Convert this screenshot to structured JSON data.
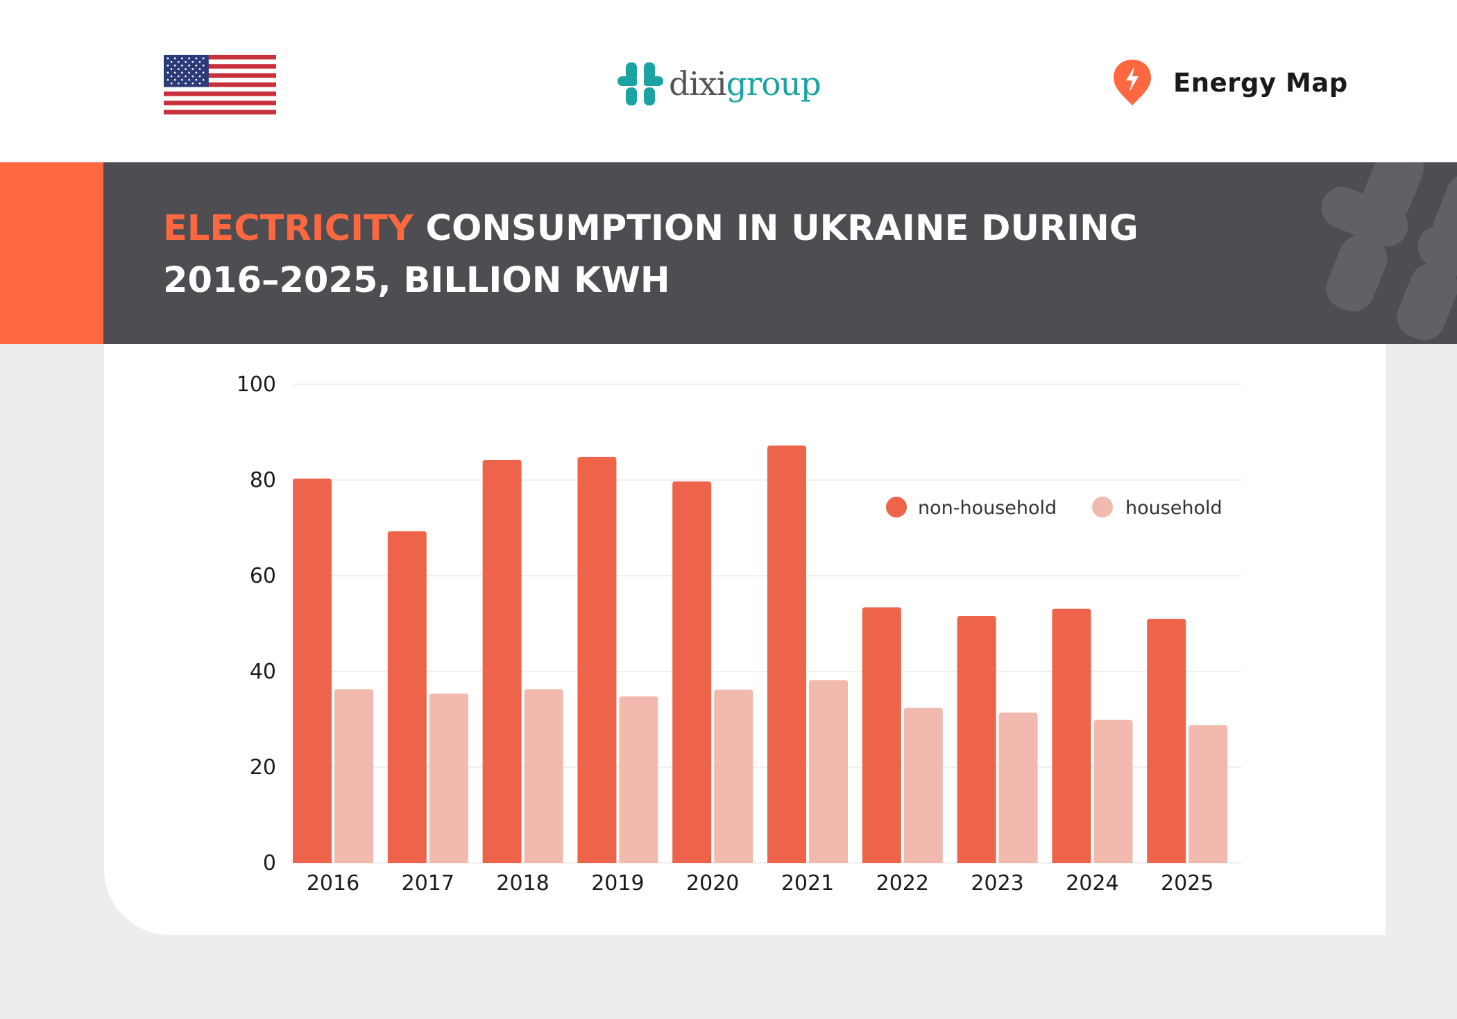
{
  "header": {
    "brand": {
      "part_a": "dixi",
      "part_b": "group"
    },
    "energy_map_label": "Energy Map"
  },
  "title": {
    "highlight": "ELECTRICITY",
    "rest": "CONSUMPTION IN UKRAINE DURING 2016–2025, BILLION KWH"
  },
  "colors": {
    "accent": "#fe6840",
    "non_household": "#ee644a",
    "household": "#f2b9ae",
    "title_band": "#4e4d52",
    "brand_teal": "#1ba3a3"
  },
  "icons": [
    "us-flag-icon",
    "dixigroup-logo-icon",
    "energy-map-pin-icon",
    "logo-watermark-icon"
  ],
  "chart_data": {
    "type": "bar",
    "title": "ELECTRICITY CONSUMPTION IN UKRAINE DURING 2016–2025, BILLION KWH",
    "xlabel": "",
    "ylabel": "",
    "categories": [
      "2016",
      "2017",
      "2018",
      "2019",
      "2020",
      "2021",
      "2022",
      "2023",
      "2024",
      "2025"
    ],
    "series": [
      {
        "name": "non-household",
        "color": "#ee644a",
        "values": [
          80.3,
          69.3,
          84.2,
          84.8,
          79.7,
          87.2,
          53.4,
          51.6,
          53.1,
          51.0
        ]
      },
      {
        "name": "household",
        "color": "#f2b9ae",
        "values": [
          36.3,
          35.4,
          36.3,
          34.8,
          36.2,
          38.2,
          32.4,
          31.4,
          29.9,
          28.8
        ]
      }
    ],
    "ylim": [
      0,
      100
    ],
    "yticks": [
      0,
      20,
      40,
      60,
      80,
      100
    ],
    "grid": true,
    "legend": "top-right"
  }
}
